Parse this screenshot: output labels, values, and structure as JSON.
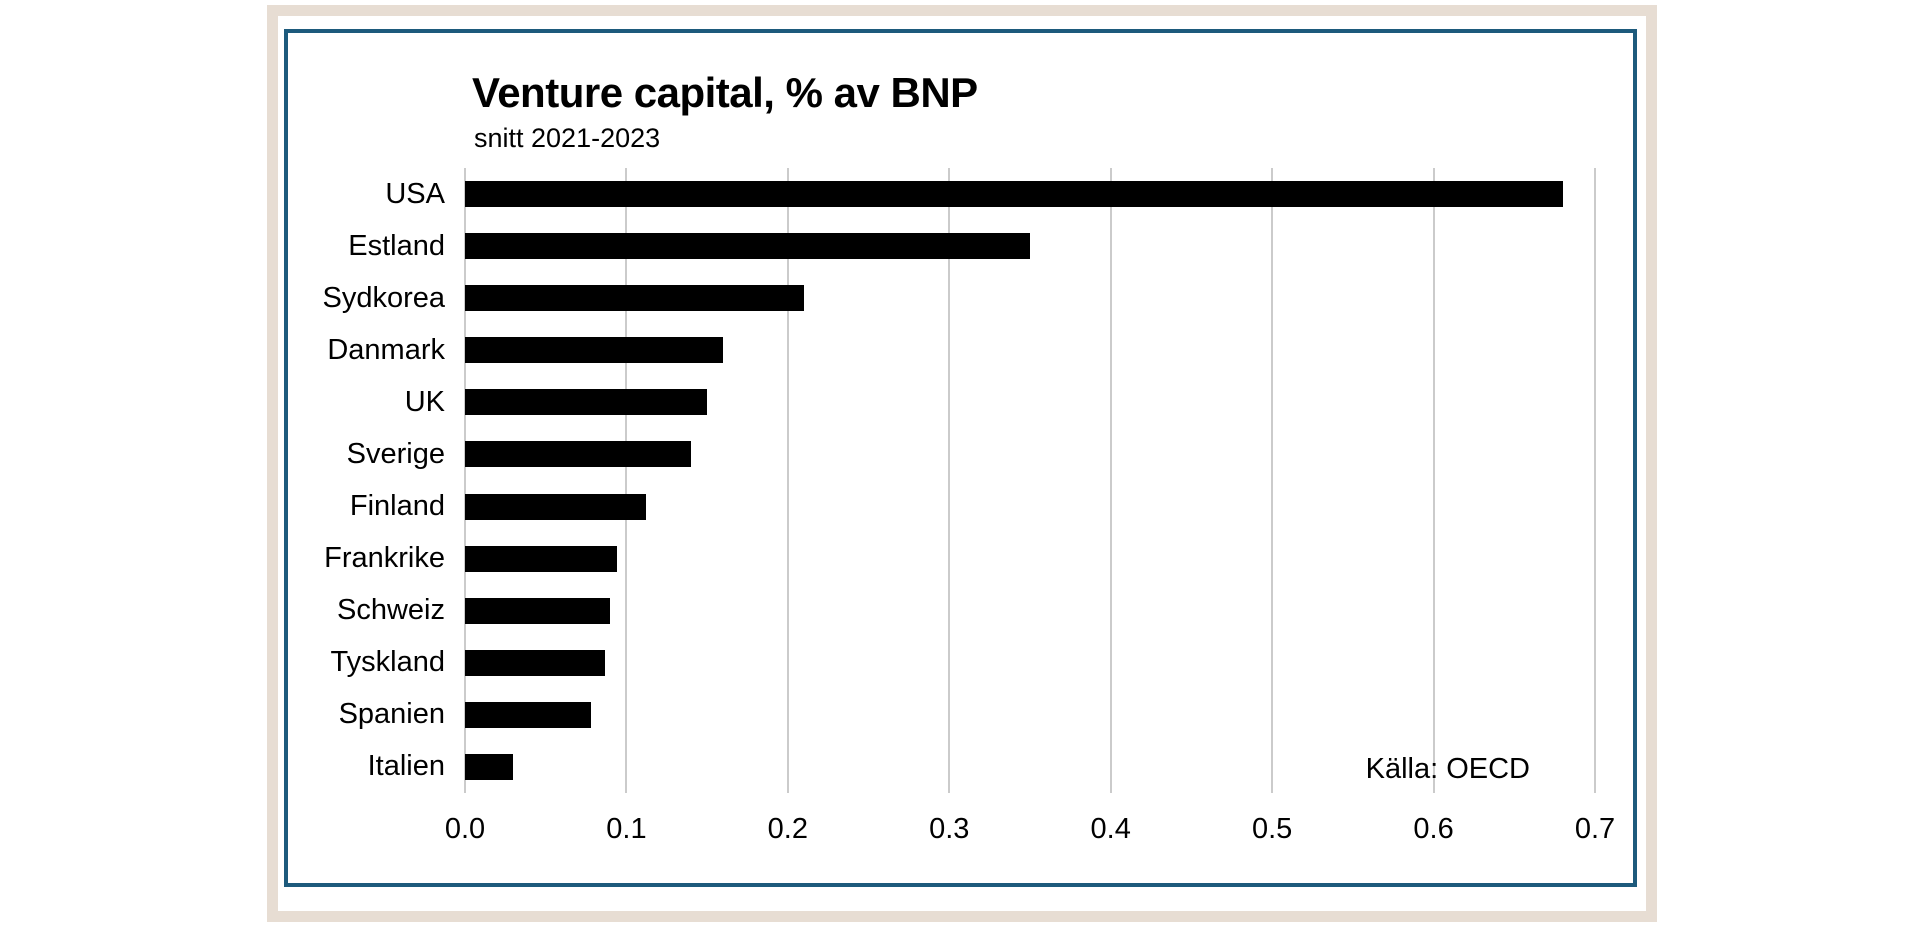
{
  "page": {
    "background": "#ffffff",
    "frame_color": "#e7ddd3",
    "card_border_color": "#1d5a7c"
  },
  "chart_data": {
    "type": "bar",
    "orientation": "horizontal",
    "title": "Venture capital, % av BNP",
    "subtitle": "snitt 2021-2023",
    "source": "Källa: OECD",
    "categories": [
      "USA",
      "Estland",
      "Sydkorea",
      "Danmark",
      "UK",
      "Sverige",
      "Finland",
      "Frankrike",
      "Schweiz",
      "Tyskland",
      "Spanien",
      "Italien"
    ],
    "values": [
      0.68,
      0.35,
      0.21,
      0.16,
      0.15,
      0.14,
      0.112,
      0.094,
      0.09,
      0.087,
      0.078,
      0.03
    ],
    "xlabel": "",
    "ylabel": "",
    "xlim": [
      0,
      0.7
    ],
    "xticks": [
      "0.0",
      "0.1",
      "0.2",
      "0.3",
      "0.4",
      "0.5",
      "0.6",
      "0.7"
    ],
    "grid": true,
    "gridline_color": "#cbcbcb",
    "bar_color": "#000000",
    "legend_position": "none"
  }
}
